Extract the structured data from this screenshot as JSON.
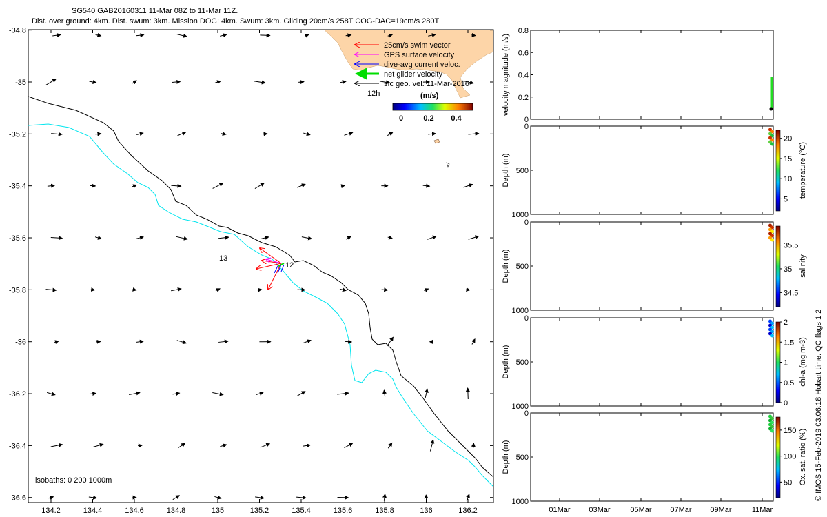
{
  "header": {
    "line1": "SG540 GAB20160311 11-Mar 08Z to 11-Mar 11Z.",
    "line2": "Dist. over ground: 4km. Dist. swum: 3km. Mission DOG: 4km. Swum: 3km. Gliding 20cm/s 258T COG-DAC=19cm/s 280T"
  },
  "map": {
    "lon_ticks": [
      "134.2",
      "134.4",
      "134.6",
      "134.8",
      "135",
      "135.2",
      "135.4",
      "135.6",
      "135.8",
      "136",
      "136.2"
    ],
    "lat_ticks": [
      "-34.8",
      "-35",
      "-35.2",
      "-35.4",
      "-35.6",
      "-35.8",
      "-36",
      "-36.2",
      "-36.4",
      "-36.6"
    ],
    "xlim": [
      134.11,
      136.3
    ],
    "ylim": [
      -36.61,
      -34.81
    ],
    "isobaths_label": "isobaths: 0   200  1000m",
    "legend": [
      {
        "label": "25cm/s swim vector",
        "color": "#ff0000"
      },
      {
        "label": "GPS surface velocity",
        "color": "#ff00ff"
      },
      {
        "label": "dive-avg current veloc.",
        "color": "#0000ff"
      },
      {
        "label": "net glider velocity",
        "color": "#00dd00"
      },
      {
        "label": "sfc geo. vel. 11-Mar-2016",
        "color": "#000000"
      }
    ],
    "colorbar_title": "(m/s)",
    "colorbar_ticks": [
      "0",
      "0.2",
      "0.4"
    ],
    "annotations": {
      "label_12h": "12h",
      "label_13": "13",
      "label_12": "12"
    },
    "isobath_colors": {
      "200": "#00e5ee",
      "1000": "#000000"
    }
  },
  "chart_data": [
    {
      "type": "line",
      "ylabel": "velocity magnitude (m/s)",
      "yticks": [
        "0.8",
        "0.6",
        "0.4",
        "0.2",
        "0"
      ],
      "ylim": [
        0,
        0.8
      ],
      "value_color": "#22dd22"
    },
    {
      "type": "scatter",
      "ylabel": "Depth (m)",
      "yticks": [
        "0",
        "500",
        "1000"
      ],
      "ylim": [
        1000,
        0
      ],
      "colorbar_label": "temperature (°C)",
      "colorbar_ticks": [
        "20",
        "15",
        "10",
        "5"
      ],
      "colorbar_range": [
        2,
        22
      ]
    },
    {
      "type": "scatter",
      "ylabel": "Depth (m)",
      "yticks": [
        "0",
        "500",
        "1000"
      ],
      "ylim": [
        1000,
        0
      ],
      "colorbar_label": "salinity",
      "colorbar_ticks": [
        "35.5",
        "35",
        "34.5"
      ],
      "colorbar_range": [
        34.2,
        35.9
      ]
    },
    {
      "type": "scatter",
      "ylabel": "Depth (m)",
      "yticks": [
        "0",
        "500",
        "1000"
      ],
      "ylim": [
        1000,
        0
      ],
      "colorbar_label": "chl-a (mg m-3)",
      "colorbar_ticks": [
        "2",
        "1.5",
        "1",
        "0.5",
        "0"
      ],
      "colorbar_range": [
        0,
        2
      ]
    },
    {
      "type": "scatter",
      "ylabel": "Depth (m)",
      "yticks": [
        "0",
        "500",
        "1000"
      ],
      "ylim": [
        1000,
        0
      ],
      "colorbar_label": "Ox. sat. ratio (%)",
      "colorbar_ticks": [
        "150",
        "100",
        "50"
      ],
      "colorbar_range": [
        20,
        175
      ],
      "x_ticks": [
        "01Mar",
        "03Mar",
        "05Mar",
        "07Mar",
        "09Mar",
        "11Mar"
      ]
    }
  ],
  "footer": {
    "credit": "© IMOS 15-Feb-2019 03:06:18 Hobart time. QC flags 1  2"
  }
}
